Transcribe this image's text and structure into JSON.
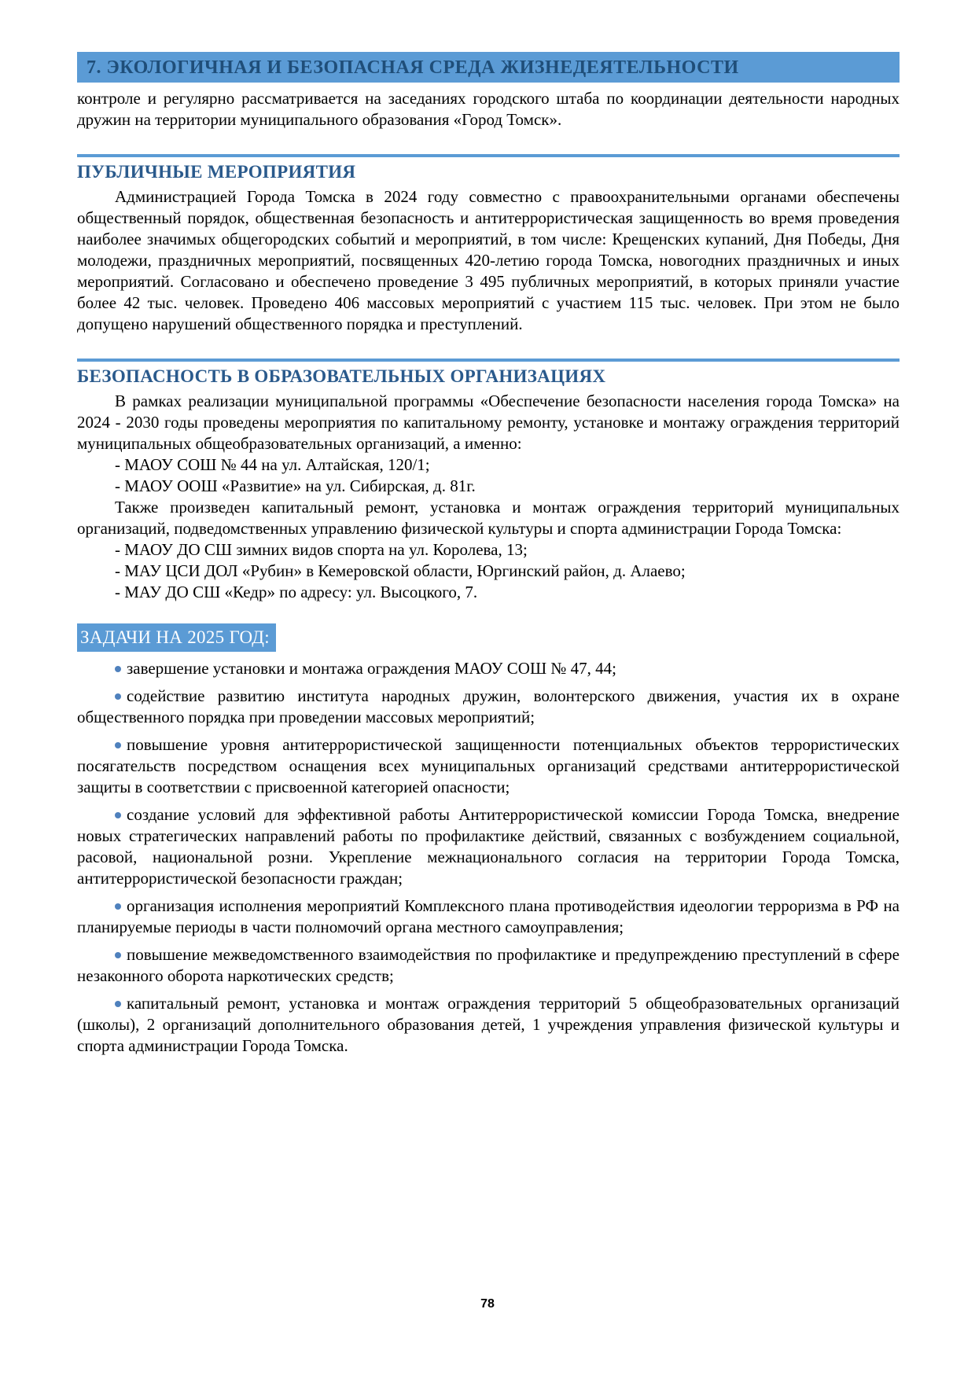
{
  "chapter": {
    "title": "7. ЭКОЛОГИЧНАЯ И БЕЗОПАСНАЯ СРЕДА ЖИЗНЕДЕЯТЕЛЬНОСТИ"
  },
  "intro": {
    "text": "контроле и регулярно рассматривается на заседаниях городского штаба по координации деятельности народных дружин на территории муниципального образования «Город Томск»."
  },
  "public_events": {
    "heading": "ПУБЛИЧНЫЕ МЕРОПРИЯТИЯ",
    "paragraph": "Администрацией Города Томска в 2024 году совместно с правоохранительными органами обеспечены общественный порядок, общественная безопасность и антитеррористическая защищенность во время проведения наиболее значимых общегородских событий и мероприятий, в том числе: Крещенских купаний, Дня Победы, Дня молодежи, праздничных мероприятий, посвященных 420-летию города Томска, новогодних праздничных и иных мероприятий. Согласовано и обеспечено проведение 3 495 публичных мероприятий, в которых приняли участие более 42 тыс. человек. Проведено 406 массовых мероприятий с участием 115 тыс. человек. При этом не было допущено нарушений общественного порядка и преступлений."
  },
  "edu_safety": {
    "heading": "БЕЗОПАСНОСТЬ В ОБРАЗОВАТЕЛЬНЫХ ОРГАНИЗАЦИЯХ",
    "paragraph1": "В рамках реализации муниципальной программы «Обеспечение безопасности населения города Томска» на 2024 - 2030 годы проведены мероприятия по капитальному ремонту, установке и монтажу ограждения территорий муниципальных общеобразовательных организаций, а именно:",
    "list1": [
      "- МАОУ СОШ № 44 на ул. Алтайская, 120/1;",
      "- МАОУ ООШ «Развитие» на ул. Сибирская, д. 81г."
    ],
    "paragraph2": "Также произведен капитальный ремонт, установка и монтаж ограждения территорий муниципальных организаций, подведомственных управлению физической культуры и спорта администрации Города Томска:",
    "list2": [
      "- МАОУ ДО СШ зимних видов спорта на ул. Королева, 13;",
      "- МАУ ЦСИ ДОЛ «Рубин» в Кемеровской области, Юргинский район, д. Алаево;",
      "- МАУ ДО СШ «Кедр» по адресу: ул. Высоцкого, 7."
    ]
  },
  "tasks_2025": {
    "heading": "ЗАДАЧИ НА 2025 ГОД:",
    "items": [
      "завершение установки и монтажа ограждения МАОУ СОШ № 47, 44;",
      "содействие развитию института народных дружин, волонтерского движения, участия их в охране общественного порядка при проведении массовых мероприятий;",
      "повышение уровня антитеррористической защищенности потенциальных объектов террористических посягательств посредством оснащения всех муниципальных организаций средствами антитеррористической защиты в соответствии с присвоенной категорией опасности;",
      "создание условий для эффективной работы Антитеррористической комиссии Города Томска, внедрение новых стратегических направлений работы по профилактике действий, связанных с возбуждением социальной, расовой, национальной розни. Укрепление межнационального согласия на территории Города Томска, антитеррористической безопасности граждан;",
      "организация исполнения мероприятий Комплексного плана противодействия идеологии терроризма в РФ на планируемые периоды в части полномочий органа местного самоуправления;",
      "повышение межведомственного взаимодействия по профилактике и предупреждению преступлений в сфере незаконного оборота наркотических средств;",
      "капитальный ремонт, установка и монтаж ограждения территорий 5 общеобразовательных организаций (школы), 2 организаций дополнительного образования детей, 1 учреждения управления физической культуры и спорта администрации Города Томска."
    ]
  },
  "footer": {
    "page_number": "78"
  },
  "colors": {
    "accent_blue": "#5b9bd5",
    "heading_blue": "#2a5a8c",
    "bar_text_blue": "#1f4e79",
    "bullet_blue": "#4f81bd"
  }
}
